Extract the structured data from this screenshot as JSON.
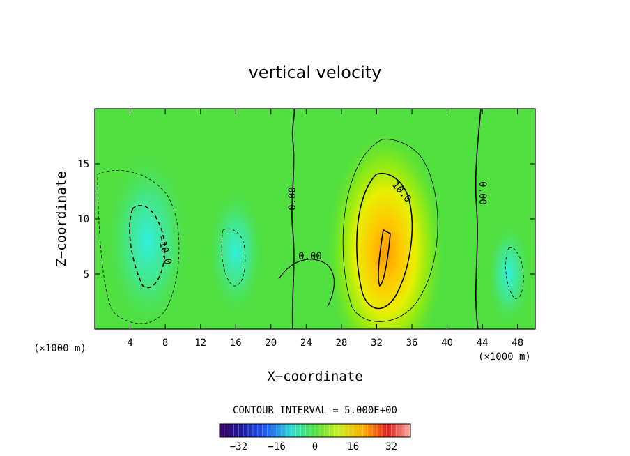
{
  "chart_data": {
    "type": "heatmap",
    "title": "vertical velocity",
    "xlabel": "X−coordinate",
    "ylabel": "Z−coordinate",
    "x_unit_left": "(×1000 m)",
    "x_unit_right": "(×1000 m)",
    "xlim": [
      0,
      50
    ],
    "ylim": [
      0,
      20
    ],
    "x_ticks": [
      4,
      8,
      12,
      16,
      20,
      24,
      28,
      32,
      36,
      40,
      44,
      48
    ],
    "y_ticks": [
      5,
      10,
      15
    ],
    "contour_interval_text": "CONTOUR INTERVAL = 5.000E+00",
    "contour_labels": [
      "0.00",
      "0.00",
      "0.00",
      "10.0",
      "−10.0"
    ],
    "colorbar": {
      "range": [
        -40,
        40
      ],
      "ticks": [
        -32,
        -16,
        0,
        16,
        32
      ]
    },
    "features": [
      {
        "kind": "updraft",
        "x": 33,
        "z": 7,
        "peak": 22
      },
      {
        "kind": "downdraft",
        "x": 6,
        "z": 8,
        "peak": -14
      },
      {
        "kind": "downdraft",
        "x": 16,
        "z": 7,
        "peak": -7
      },
      {
        "kind": "downdraft",
        "x": 47,
        "z": 5,
        "peak": -4
      }
    ]
  }
}
